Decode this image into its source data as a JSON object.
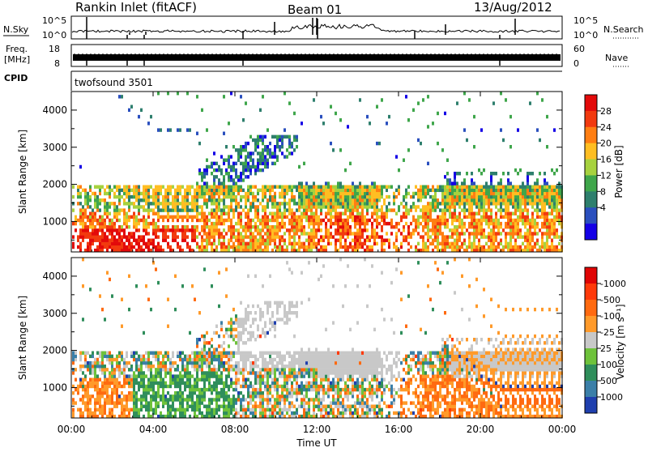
{
  "header": {
    "station": "Rankin Inlet (fitACF)",
    "beam": "Beam 01",
    "date": "13/Aug/2012"
  },
  "noise_panel": {
    "left_label": "N.Sky",
    "right_label": "N.Search",
    "left_ticks": [
      "10^5",
      "10^0"
    ],
    "right_ticks": [
      "10^5",
      "10^0"
    ]
  },
  "freq_panel": {
    "left_label_1": "Freq.",
    "left_label_2": "[MHz]",
    "right_label": "Nave",
    "left_ticks": [
      "18",
      "8"
    ],
    "right_ticks": [
      "60",
      "0"
    ]
  },
  "cpid_panel": {
    "label": "CPID",
    "program": "twofsound 3501"
  },
  "chart_data": [
    {
      "type": "heatmap",
      "name": "power",
      "ylabel": "Slant Range [km]",
      "ylim": [
        180,
        4500
      ],
      "yticks": [
        "1000",
        "2000",
        "3000",
        "4000"
      ],
      "colorbar_label": "Power [dB]",
      "colorbar_ticks": [
        "4",
        "8",
        "12",
        "16",
        "20",
        "24",
        "28"
      ],
      "colors": [
        "#1400e6",
        "#2a4fbe",
        "#2e7f6d",
        "#3fa64b",
        "#a7d23f",
        "#ffbe22",
        "#ff7e12",
        "#f23a0f",
        "#e30a0a"
      ]
    },
    {
      "type": "heatmap",
      "name": "velocity",
      "ylabel": "Slant Range [km]",
      "ylim": [
        180,
        4500
      ],
      "yticks": [
        "1000",
        "2000",
        "3000",
        "4000"
      ],
      "colorbar_label": "Velocity [m s⁻¹]",
      "colorbar_ticks": [
        "1000",
        "500",
        "100",
        "25",
        "-25",
        "-100",
        "-500",
        "-1000"
      ],
      "colors": [
        "#1f3fae",
        "#3b7fa8",
        "#2f8e5b",
        "#6ec23b",
        "#c8c8c8",
        "#ff9a2a",
        "#ff6a10",
        "#ff3a0a",
        "#e00505"
      ]
    }
  ],
  "x_axis": {
    "title": "Time UT",
    "ticks": [
      "00:00",
      "04:00",
      "08:00",
      "12:00",
      "16:00",
      "20:00",
      "00:00"
    ]
  }
}
